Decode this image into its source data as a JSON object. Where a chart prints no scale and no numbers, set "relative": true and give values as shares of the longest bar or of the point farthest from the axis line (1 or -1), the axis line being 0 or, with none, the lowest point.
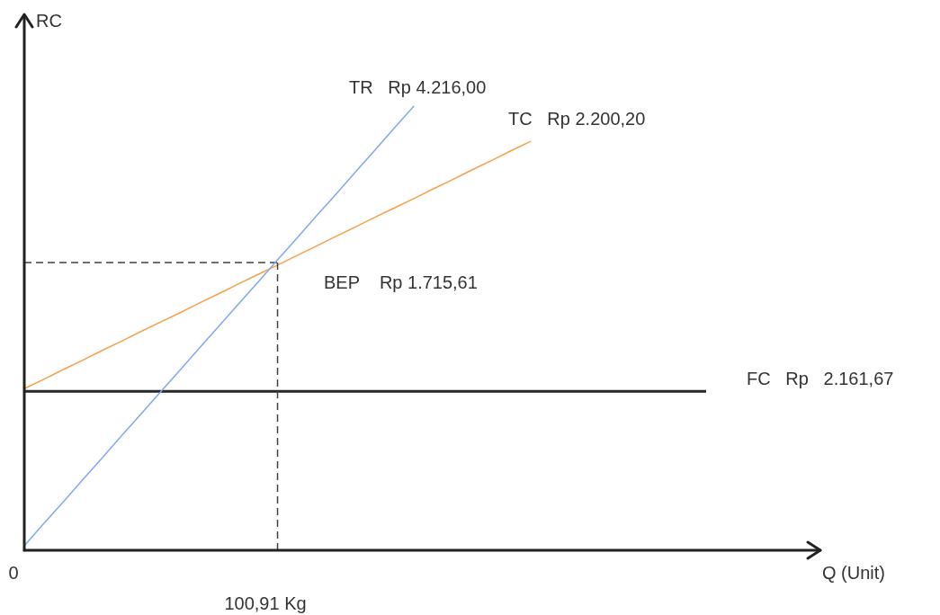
{
  "chart_data": {
    "type": "line",
    "relative": true,
    "ylabel": "RC",
    "grid": false,
    "legend": false,
    "categories": [
      null,
      null,
      null,
      null,
      null,
      null,
      null,
      null,
      null,
      null,
      null,
      null,
      null,
      null,
      null,
      null,
      null,
      null,
      null,
      null,
      null,
      null,
      null,
      null,
      null,
      null,
      null,
      null,
      null,
      null,
      null,
      null,
      null,
      null,
      null,
      null
    ],
    "series": [
      {
        "values": [
          0.01,
          0.06,
          0.109,
          0.159,
          0.208,
          0.258,
          0.307,
          0.357,
          0.406,
          0.456,
          0.505,
          0.555,
          0.604,
          0.654,
          0.703,
          0.753,
          0.802,
          0.852,
          0.901,
          0.951,
          1,
          null,
          null,
          null,
          null,
          null,
          null,
          null,
          null,
          null,
          null,
          null,
          null,
          null,
          null,
          null
        ],
        "color": "#7fa8f0",
        "line_style": "solid"
      },
      {
        "values": [
          0.364,
          0.385,
          0.407,
          0.428,
          0.45,
          0.471,
          0.493,
          0.514,
          0.535,
          0.557,
          0.578,
          0.6,
          0.621,
          0.642,
          0.664,
          0.685,
          0.707,
          0.728,
          0.75,
          0.771,
          0.792,
          0.814,
          0.835,
          0.857,
          0.878,
          0.9,
          0.921,
          null,
          null,
          null,
          null,
          null,
          null,
          null,
          null,
          null
        ],
        "color": "#f5a04a",
        "line_style": "solid"
      },
      {
        "values": [
          0.358,
          0.358,
          0.358,
          0.358,
          0.358,
          0.358,
          0.358,
          0.358,
          0.358,
          0.358,
          0.358,
          0.358,
          0.358,
          0.358,
          0.358,
          0.358,
          0.358,
          0.358,
          0.358,
          0.358,
          0.358,
          0.358,
          0.358,
          0.358,
          0.358,
          0.358,
          0.358,
          0.358,
          0.358,
          0.358,
          0.358,
          0.358,
          0.358,
          0.358,
          0.358,
          0.358
        ],
        "color": "#262626",
        "line_style": "solid"
      },
      {
        "values": [
          0.648,
          0.648,
          0.648,
          0.648,
          0.648,
          0.648,
          0.648,
          0.648,
          0.648,
          0.648,
          0.648,
          0.648,
          0.648,
          0.648,
          null,
          null,
          null,
          null,
          null,
          null,
          null,
          null,
          null,
          null,
          null,
          null,
          null,
          null,
          null,
          null,
          null,
          null,
          null,
          null,
          null,
          null
        ],
        "color": "#404040",
        "line_style": "dashed"
      }
    ],
    "annotations": [
      "TR   Rp 4.216,00",
      "TC   Rp 2.200,20",
      "BEP    Rp 1.715,61",
      "FC   Rp   2.161,67",
      "100,91 Kg",
      "0",
      "Q (Unit)"
    ]
  }
}
